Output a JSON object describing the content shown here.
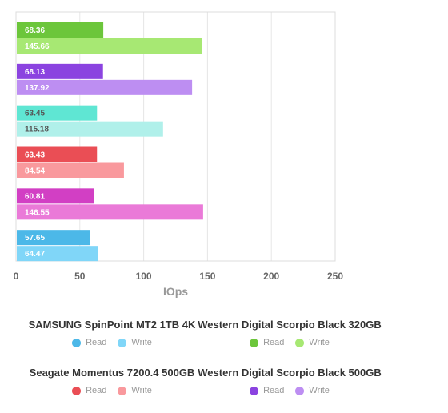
{
  "chart_data": {
    "type": "bar",
    "orientation": "horizontal",
    "xlabel": "IOps",
    "xlim": [
      0,
      250
    ],
    "xticks": [
      "0",
      "50",
      "100",
      "150",
      "200",
      "250"
    ],
    "grid": true,
    "legend_position": "bottom",
    "groups": [
      {
        "name": "Western Digital Scorpio Black 320GB",
        "read": 68.36,
        "write": 145.66,
        "read_label": "68.36",
        "write_label": "145.66",
        "read_color": "#6cc63b",
        "write_color": "#a7e873"
      },
      {
        "name": "Western Digital Scorpio Black 500GB",
        "read": 68.13,
        "write": 137.92,
        "read_label": "68.13",
        "write_label": "137.92",
        "read_color": "#8b43e0",
        "write_color": "#bd8ef2"
      },
      {
        "name": "unlabeled",
        "read": 63.45,
        "write": 115.18,
        "read_label": "63.45",
        "write_label": "115.18",
        "read_color": "#5fe6d3",
        "write_color": "#b0f0ea"
      },
      {
        "name": "Seagate Momentus 7200.4 500GB",
        "read": 63.43,
        "write": 84.54,
        "read_label": "63.43",
        "write_label": "84.54",
        "read_color": "#ea4e55",
        "write_color": "#f9999d"
      },
      {
        "name": "unlabeled",
        "read": 60.81,
        "write": 146.55,
        "read_label": "60.81",
        "write_label": "146.55",
        "read_color": "#d23fc4",
        "write_color": "#ea7ad8"
      },
      {
        "name": "SAMSUNG SpinPoint MT2 1TB 4K",
        "read": 57.65,
        "write": 64.47,
        "read_label": "57.65",
        "write_label": "64.47",
        "read_color": "#4cb8e8",
        "write_color": "#80d6f8"
      }
    ],
    "label_colors": {
      "light": "#ffffff",
      "dark": "#555555"
    }
  },
  "legend": [
    {
      "title": "SAMSUNG SpinPoint MT2 1TB 4K",
      "read_label": "Read",
      "write_label": "Write",
      "read_color": "#4cb8e8",
      "write_color": "#80d6f8"
    },
    {
      "title": "Western Digital Scorpio Black 320GB",
      "read_label": "Read",
      "write_label": "Write",
      "read_color": "#6cc63b",
      "write_color": "#a7e873"
    },
    {
      "title": "Seagate Momentus 7200.4 500GB",
      "read_label": "Read",
      "write_label": "Write",
      "read_color": "#ea4e55",
      "write_color": "#f9999d"
    },
    {
      "title": "Western Digital Scorpio Black 500GB",
      "read_label": "Read",
      "write_label": "Write",
      "read_color": "#8b43e0",
      "write_color": "#bd8ef2"
    }
  ]
}
